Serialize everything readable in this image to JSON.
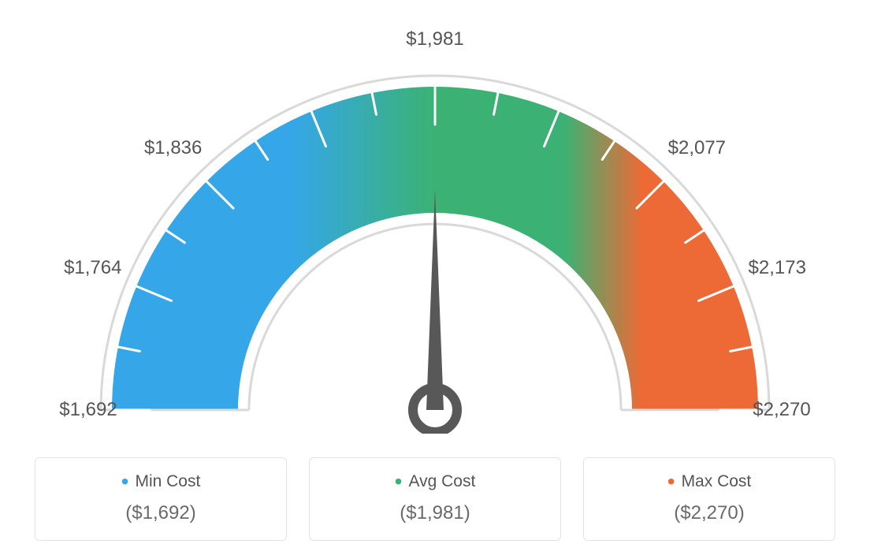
{
  "gauge": {
    "min_value": 1692,
    "max_value": 2270,
    "avg_value": 1981,
    "tick_labels": [
      "$1,692",
      "$1,764",
      "$1,836",
      "",
      "$1,981",
      "",
      "$2,077",
      "$2,173",
      "$2,270"
    ],
    "tick_count": 9,
    "minor_tick_between": 1,
    "colors": {
      "min": "#35a7e8",
      "avg": "#3bb273",
      "max": "#ed6a37",
      "blue": "#35a7e8",
      "green": "#3bb273",
      "orange": "#ed6a37"
    },
    "arc": {
      "outer_r": 410,
      "inner_r": 250,
      "guide_gap": 14,
      "guide_stroke": "#d9d9d9",
      "guide_width": 3,
      "tick_color": "#ffffff",
      "tick_width": 3,
      "major_tick_len": 48,
      "minor_tick_len": 28
    },
    "needle": {
      "color": "#585858",
      "length": 280,
      "base_width": 22,
      "ring_outer": 28,
      "ring_inner": 16
    },
    "label_fontsize": 24,
    "label_color": "#555555"
  },
  "cards": {
    "min": {
      "title": "Min Cost",
      "value": "($1,692)"
    },
    "avg": {
      "title": "Avg Cost",
      "value": "($1,981)"
    },
    "max": {
      "title": "Max Cost",
      "value": "($2,270)"
    }
  }
}
